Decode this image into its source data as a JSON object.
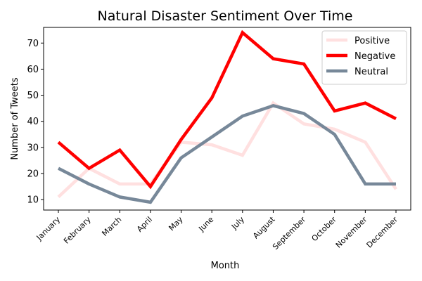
{
  "chart_data": {
    "type": "line",
    "title": "Natural Disaster Sentiment Over Time",
    "xlabel": "Month",
    "ylabel": "Number of Tweets",
    "categories": [
      "January",
      "February",
      "March",
      "April",
      "May",
      "June",
      "July",
      "August",
      "September",
      "October",
      "November",
      "December"
    ],
    "ylim": [
      6,
      76
    ],
    "yticks": [
      10,
      20,
      30,
      40,
      50,
      60,
      70
    ],
    "grid": false,
    "legend_position": "top-right",
    "series": [
      {
        "name": "Positive",
        "color": "#ffe0e0",
        "values": [
          11,
          22,
          16,
          16,
          32,
          31,
          27,
          47,
          39,
          37,
          32,
          14
        ]
      },
      {
        "name": "Negative",
        "color": "#ff0000",
        "values": [
          32,
          22,
          29,
          15,
          33,
          49,
          74,
          64,
          62,
          44,
          47,
          41
        ]
      },
      {
        "name": "Neutral",
        "color": "#778899",
        "values": [
          22,
          16,
          11,
          9,
          26,
          34,
          42,
          46,
          43,
          35,
          16,
          16
        ]
      }
    ]
  }
}
